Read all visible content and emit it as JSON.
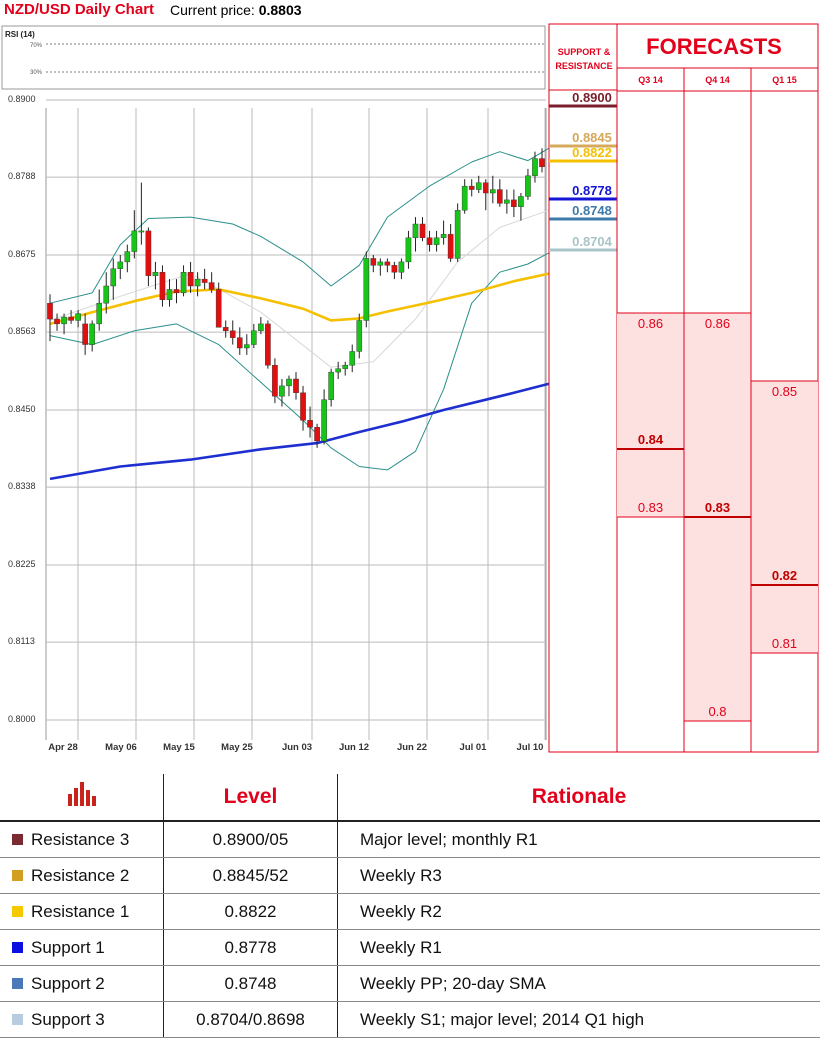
{
  "header": {
    "title": "NZD/USD Daily Chart",
    "price_label": "Current price:",
    "price": "0.8803"
  },
  "rsi": {
    "label": "RSI (14)",
    "upper": "70%",
    "lower": "30%"
  },
  "sr_header": "SUPPORT & RESISTANCE",
  "forecasts_title": "FORECASTS",
  "forecast_columns": [
    "Q3 14",
    "Q4 14",
    "Q1 15"
  ],
  "forecast_ranges": [
    {
      "col": "Q3 14",
      "high": 0.86,
      "low": 0.83,
      "median": 0.84,
      "labels": [
        "0.86",
        "0.84",
        "0.83"
      ]
    },
    {
      "col": "Q4 14",
      "high": 0.86,
      "low": 0.8,
      "median": 0.83,
      "labels": [
        "0.86",
        "0.83",
        "0.8"
      ]
    },
    {
      "col": "Q1 15",
      "high": 0.85,
      "low": 0.81,
      "median": 0.82,
      "labels": [
        "0.85",
        "0.82",
        "0.81"
      ]
    }
  ],
  "colors": {
    "accent": "#e3001b",
    "up": "#17c417",
    "down": "#e01010",
    "ma_short": "#f5c000",
    "ma_long": "#1e2fd0",
    "bands": "#2a8f8a"
  },
  "chart_data": {
    "type": "candlestick",
    "title": "NZD/USD Daily Chart",
    "ylim": [
      0.8,
      0.89
    ],
    "y_ticks": [
      "0.8900",
      "0.8788",
      "0.8675",
      "0.8563",
      "0.8450",
      "0.8338",
      "0.8225",
      "0.8113",
      "0.8000"
    ],
    "x_ticks": [
      "Apr 28",
      "May 06",
      "May 15",
      "May 25",
      "Jun 03",
      "Jun 12",
      "Jun 22",
      "Jul 01",
      "Jul 10"
    ],
    "candles": [
      [
        0.8605,
        0.8618,
        0.855,
        0.8582
      ],
      [
        0.8582,
        0.859,
        0.8565,
        0.8575
      ],
      [
        0.8575,
        0.859,
        0.856,
        0.8585
      ],
      [
        0.8585,
        0.8595,
        0.8575,
        0.858
      ],
      [
        0.858,
        0.8595,
        0.857,
        0.859
      ],
      [
        0.8575,
        0.859,
        0.853,
        0.8545
      ],
      [
        0.8545,
        0.858,
        0.8535,
        0.8575
      ],
      [
        0.8575,
        0.8625,
        0.8565,
        0.8605
      ],
      [
        0.8605,
        0.865,
        0.859,
        0.863
      ],
      [
        0.863,
        0.867,
        0.861,
        0.8655
      ],
      [
        0.8655,
        0.8675,
        0.864,
        0.8665
      ],
      [
        0.8665,
        0.869,
        0.865,
        0.868
      ],
      [
        0.868,
        0.874,
        0.867,
        0.871
      ],
      [
        0.871,
        0.878,
        0.869,
        0.871
      ],
      [
        0.871,
        0.8715,
        0.863,
        0.8645
      ],
      [
        0.8645,
        0.8665,
        0.8625,
        0.865
      ],
      [
        0.865,
        0.866,
        0.86,
        0.861
      ],
      [
        0.861,
        0.864,
        0.86,
        0.8625
      ],
      [
        0.8625,
        0.864,
        0.8605,
        0.862
      ],
      [
        0.862,
        0.866,
        0.8615,
        0.865
      ],
      [
        0.865,
        0.8665,
        0.862,
        0.863
      ],
      [
        0.863,
        0.865,
        0.8615,
        0.864
      ],
      [
        0.864,
        0.8655,
        0.8625,
        0.8635
      ],
      [
        0.8635,
        0.865,
        0.862,
        0.8625
      ],
      [
        0.8625,
        0.8635,
        0.857,
        0.857
      ],
      [
        0.857,
        0.858,
        0.8555,
        0.8565
      ],
      [
        0.8565,
        0.858,
        0.8545,
        0.8555
      ],
      [
        0.8555,
        0.857,
        0.853,
        0.854
      ],
      [
        0.854,
        0.856,
        0.853,
        0.8545
      ],
      [
        0.8545,
        0.8575,
        0.854,
        0.8565
      ],
      [
        0.8565,
        0.8585,
        0.856,
        0.8575
      ],
      [
        0.8575,
        0.858,
        0.851,
        0.8515
      ],
      [
        0.8515,
        0.8525,
        0.846,
        0.847
      ],
      [
        0.847,
        0.8495,
        0.8455,
        0.8485
      ],
      [
        0.8485,
        0.85,
        0.847,
        0.8495
      ],
      [
        0.8495,
        0.8505,
        0.8465,
        0.8475
      ],
      [
        0.8475,
        0.8485,
        0.842,
        0.8435
      ],
      [
        0.8435,
        0.8455,
        0.841,
        0.8425
      ],
      [
        0.8425,
        0.843,
        0.8395,
        0.8405
      ],
      [
        0.8405,
        0.848,
        0.84,
        0.8465
      ],
      [
        0.8465,
        0.851,
        0.8455,
        0.8505
      ],
      [
        0.8505,
        0.852,
        0.8495,
        0.851
      ],
      [
        0.851,
        0.852,
        0.85,
        0.8515
      ],
      [
        0.8515,
        0.8545,
        0.8505,
        0.8535
      ],
      [
        0.8535,
        0.859,
        0.8525,
        0.858
      ],
      [
        0.858,
        0.868,
        0.857,
        0.867
      ],
      [
        0.867,
        0.8675,
        0.865,
        0.866
      ],
      [
        0.866,
        0.867,
        0.8645,
        0.8665
      ],
      [
        0.8665,
        0.867,
        0.865,
        0.866
      ],
      [
        0.866,
        0.8665,
        0.864,
        0.865
      ],
      [
        0.865,
        0.867,
        0.864,
        0.8665
      ],
      [
        0.8665,
        0.871,
        0.8655,
        0.87
      ],
      [
        0.87,
        0.873,
        0.868,
        0.872
      ],
      [
        0.872,
        0.873,
        0.8695,
        0.87
      ],
      [
        0.87,
        0.871,
        0.868,
        0.869
      ],
      [
        0.869,
        0.871,
        0.868,
        0.87
      ],
      [
        0.87,
        0.8725,
        0.869,
        0.8705
      ],
      [
        0.8705,
        0.872,
        0.8665,
        0.867
      ],
      [
        0.867,
        0.875,
        0.8665,
        0.874
      ],
      [
        0.874,
        0.8785,
        0.8735,
        0.8775
      ],
      [
        0.8775,
        0.8785,
        0.876,
        0.877
      ],
      [
        0.877,
        0.879,
        0.8765,
        0.878
      ],
      [
        0.878,
        0.8785,
        0.874,
        0.8765
      ],
      [
        0.8765,
        0.879,
        0.875,
        0.877
      ],
      [
        0.877,
        0.8785,
        0.8745,
        0.875
      ],
      [
        0.875,
        0.877,
        0.8735,
        0.8755
      ],
      [
        0.8755,
        0.877,
        0.873,
        0.8745
      ],
      [
        0.8745,
        0.8765,
        0.8725,
        0.876
      ],
      [
        0.876,
        0.88,
        0.8755,
        0.879
      ],
      [
        0.879,
        0.8825,
        0.878,
        0.8815
      ],
      [
        0.8815,
        0.883,
        0.8795,
        0.8803
      ]
    ],
    "sma_short": [
      [
        0,
        0.8575
      ],
      [
        6,
        0.8592
      ],
      [
        12,
        0.8608
      ],
      [
        18,
        0.8622
      ],
      [
        24,
        0.8625
      ],
      [
        30,
        0.8612
      ],
      [
        36,
        0.8597
      ],
      [
        40,
        0.858
      ],
      [
        44,
        0.8583
      ],
      [
        48,
        0.8593
      ],
      [
        54,
        0.8606
      ],
      [
        60,
        0.862
      ],
      [
        66,
        0.8637
      ],
      [
        71,
        0.8648
      ]
    ],
    "sma_long": [
      [
        0,
        0.835
      ],
      [
        10,
        0.8368
      ],
      [
        20,
        0.8378
      ],
      [
        30,
        0.8393
      ],
      [
        38,
        0.8402
      ],
      [
        44,
        0.8418
      ],
      [
        50,
        0.8433
      ],
      [
        56,
        0.845
      ],
      [
        62,
        0.8465
      ],
      [
        66,
        0.8475
      ],
      [
        71,
        0.8488
      ]
    ],
    "bb_upper": [
      [
        0,
        0.8605
      ],
      [
        6,
        0.862
      ],
      [
        10,
        0.869
      ],
      [
        14,
        0.8728
      ],
      [
        20,
        0.873
      ],
      [
        26,
        0.872
      ],
      [
        30,
        0.8702
      ],
      [
        36,
        0.8665
      ],
      [
        40,
        0.863
      ],
      [
        44,
        0.866
      ],
      [
        48,
        0.873
      ],
      [
        54,
        0.8775
      ],
      [
        60,
        0.881
      ],
      [
        64,
        0.8825
      ],
      [
        68,
        0.8812
      ],
      [
        71,
        0.883
      ]
    ],
    "bb_lower": [
      [
        0,
        0.8558
      ],
      [
        6,
        0.8545
      ],
      [
        12,
        0.8565
      ],
      [
        18,
        0.8575
      ],
      [
        24,
        0.8545
      ],
      [
        30,
        0.849
      ],
      [
        36,
        0.8435
      ],
      [
        40,
        0.8395
      ],
      [
        44,
        0.8368
      ],
      [
        48,
        0.8363
      ],
      [
        52,
        0.839
      ],
      [
        56,
        0.848
      ],
      [
        60,
        0.8605
      ],
      [
        64,
        0.865
      ],
      [
        68,
        0.8662
      ],
      [
        71,
        0.8678
      ]
    ],
    "bb_middle": [
      [
        0,
        0.858
      ],
      [
        10,
        0.8615
      ],
      [
        20,
        0.8648
      ],
      [
        30,
        0.8592
      ],
      [
        40,
        0.8512
      ],
      [
        46,
        0.852
      ],
      [
        52,
        0.8582
      ],
      [
        58,
        0.8665
      ],
      [
        64,
        0.8715
      ],
      [
        71,
        0.874
      ]
    ]
  },
  "sr_levels": [
    {
      "value": 0.89,
      "label": "0.8900",
      "color": "#7a1e2c"
    },
    {
      "value": 0.8845,
      "label": "0.8845",
      "color": "#d6a85b"
    },
    {
      "value": 0.8822,
      "label": "0.8822",
      "color": "#f5c000"
    },
    {
      "value": 0.8778,
      "label": "0.8778",
      "color": "#1515d8"
    },
    {
      "value": 0.8748,
      "label": "0.8748",
      "color": "#3e7aa8"
    },
    {
      "value": 0.8704,
      "label": "0.8704",
      "color": "#a8c4c8"
    }
  ],
  "table": {
    "headers": [
      "Level",
      "Rationale"
    ],
    "rows": [
      {
        "name": "Resistance 3",
        "level": "0.8900/05",
        "rationale": "Major level; monthly R1",
        "color": "#7a2a30"
      },
      {
        "name": "Resistance 2",
        "level": "0.8845/52",
        "rationale": "Weekly R3",
        "color": "#d2a020"
      },
      {
        "name": "Resistance 1",
        "level": "0.8822",
        "rationale": "Weekly R2",
        "color": "#f5c800"
      },
      {
        "name": "Support 1",
        "level": "0.8778",
        "rationale": "Weekly R1",
        "color": "#0a10e0"
      },
      {
        "name": "Support 2",
        "level": "0.8748",
        "rationale": "Weekly PP; 20-day SMA",
        "color": "#4a78b8"
      },
      {
        "name": "Support 3",
        "level": "0.8704/0.8698",
        "rationale": "Weekly S1; major level; 2014 Q1 high",
        "color": "#b8cce0"
      }
    ]
  }
}
